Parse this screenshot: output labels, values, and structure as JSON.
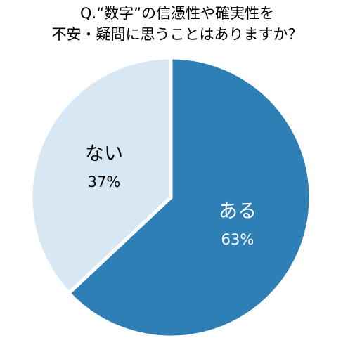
{
  "chart_data": {
    "type": "pie",
    "title": [
      "Q.“数字”の信憑性や確実性を",
      "不安・疑問に思うことはありますか？"
    ],
    "categories": [
      "ある",
      "ない"
    ],
    "values": [
      63,
      37
    ],
    "value_labels": [
      "63%",
      "37%"
    ],
    "colors": [
      "#2f7fb7",
      "#d7e7f4"
    ],
    "label_colors": [
      "#ffffff",
      "#000000"
    ]
  }
}
